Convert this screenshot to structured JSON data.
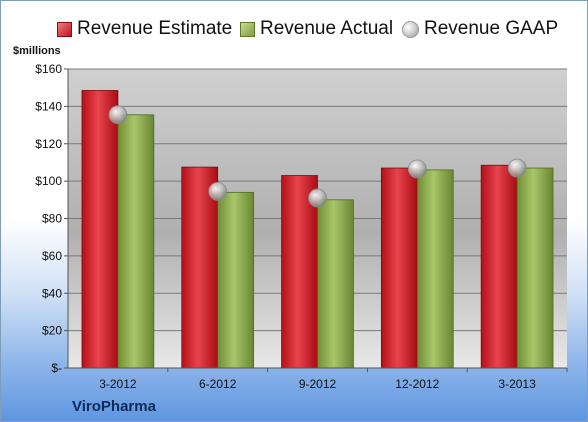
{
  "company": "ViroPharma",
  "chart_data": {
    "type": "bar",
    "ylabel": "$millions",
    "categories": [
      "3-2012",
      "6-2012",
      "9-2012",
      "12-2012",
      "3-2013"
    ],
    "series": [
      {
        "name": "Revenue Estimate",
        "kind": "bar",
        "color": "#c8161e",
        "values": [
          148.5,
          107.5,
          103,
          107,
          108.5
        ]
      },
      {
        "name": "Revenue Actual",
        "kind": "bar",
        "color": "#8aaa4a",
        "values": [
          135.5,
          94,
          90,
          106,
          107
        ]
      },
      {
        "name": "Revenue GAAP",
        "kind": "marker",
        "color": "#b8b8b8",
        "values": [
          135.5,
          94.5,
          91,
          106.5,
          107
        ]
      }
    ],
    "ylim": [
      0,
      160
    ],
    "yticks": [
      0,
      20,
      40,
      60,
      80,
      100,
      120,
      140,
      160
    ],
    "ytick_labels": [
      "$-",
      "$20",
      "$40",
      "$60",
      "$80",
      "$100",
      "$120",
      "$140",
      "$160"
    ],
    "grid": true,
    "legend_position": "top"
  }
}
